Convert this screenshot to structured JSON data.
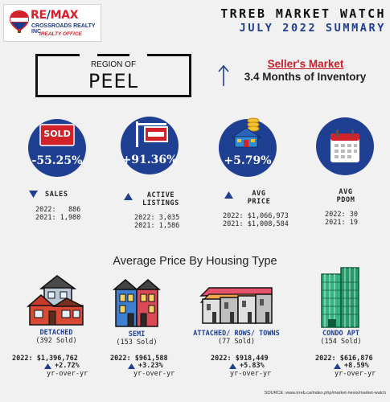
{
  "brand": {
    "balloon_text": "RE/MAX",
    "name_left": "RE",
    "name_slash": "/",
    "name_right": "MAX",
    "office": "CROSSROADS REALTY INC.",
    "tagline": "iREALTY OFFICE"
  },
  "report": {
    "title": "TRREB MARKET WATCH",
    "subtitle": "JULY 2022 SUMMARY"
  },
  "region": {
    "label": "REGION OF",
    "name": "PEEL"
  },
  "market": {
    "status": "Seller's Market",
    "inventory": "3.4 Months of Inventory"
  },
  "kpis": {
    "sales": {
      "icon_text": "SOLD",
      "value": "-55.25%",
      "label": "SALES",
      "direction": "down",
      "line_2022": "2022:   886",
      "line_2021": "2021: 1,980"
    },
    "active_listings": {
      "value": "+91.36%",
      "label_line1": "ACTIVE",
      "label_line2": "LISTINGS",
      "direction": "up",
      "line_2022": "2022: 3,035",
      "line_2021": "2021: 1,586"
    },
    "avg_price": {
      "value": "+5.79%",
      "label_line1": "AVG",
      "label_line2": "PRICE",
      "direction": "up",
      "line_2022": "2022: $1,066,973",
      "line_2021": "2021: $1,008,584"
    },
    "avg_pdom": {
      "label_line1": "AVG",
      "label_line2": "PDOM",
      "line_2022": "2022: 30",
      "line_2021": "2021: 19"
    }
  },
  "housing": {
    "section_title": "Average Price By Housing Type",
    "types": [
      {
        "name": "DETACHED",
        "sold": "(392 Sold)",
        "price": "2022: $1,396,762",
        "change": "+2.72%",
        "yoy": "yr-over-yr"
      },
      {
        "name": "SEMI",
        "sold": "(153 Sold)",
        "price": "2022: $961,588",
        "change": "+3.23%",
        "yoy": "yr-over-yr"
      },
      {
        "name": "ATTACHED/ ROWS/ TOWNS",
        "sold": "(77 Sold)",
        "price": "2022: $918,449",
        "change": "+5.83%",
        "yoy": "yr-over-yr"
      },
      {
        "name": "CONDO APT",
        "sold": "(154 Sold)",
        "price": "2022: $616,876",
        "change": "+8.59%",
        "yoy": "yr-over-yr"
      }
    ]
  },
  "source": {
    "label": "SOURCE:",
    "url": "www.trreb.ca/index.php/market-news/market-watch"
  },
  "colors": {
    "brand_red": "#d2232a",
    "brand_blue": "#1f3f93",
    "background": "#f1f1f1"
  },
  "icons": [
    "remax-balloon-logo",
    "sold-sign-icon",
    "for-sale-sign-icon",
    "house-coins-icon",
    "calendar-icon",
    "up-arrow-icon",
    "detached-house-icon",
    "semi-house-icon",
    "townhouse-row-icon",
    "condo-tower-icon"
  ]
}
